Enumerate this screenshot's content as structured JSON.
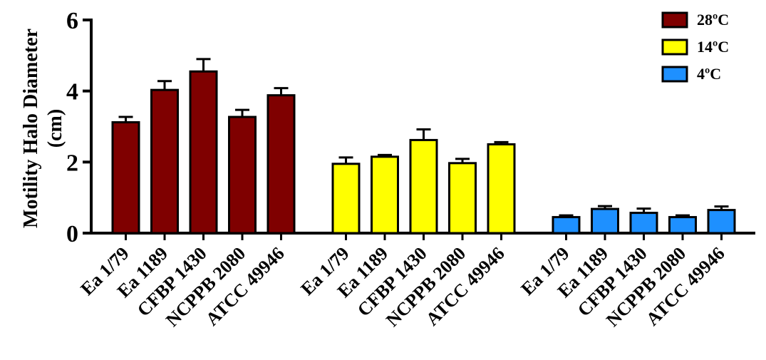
{
  "chart_data": {
    "type": "bar",
    "ylabel_lines": [
      "Motility Halo Diameter",
      "(cm)"
    ],
    "ylim": [
      0,
      6
    ],
    "yticks": [
      "0",
      "2",
      "4",
      "6"
    ],
    "categories": [
      "Ea 1/79",
      "Ea 1189",
      "CFBP 1430",
      "NCPPB 2080",
      "ATCC 49946"
    ],
    "legend_position": "top-right",
    "grid": false,
    "series": [
      {
        "name": "28ºC",
        "color": "#7f0000",
        "values": [
          3.12,
          4.03,
          4.55,
          3.27,
          3.88
        ],
        "errors": [
          0.15,
          0.25,
          0.35,
          0.2,
          0.2
        ]
      },
      {
        "name": "14ºC",
        "color": "#ffff00",
        "values": [
          1.95,
          2.15,
          2.62,
          1.97,
          2.5
        ],
        "errors": [
          0.18,
          0.05,
          0.3,
          0.12,
          0.06
        ]
      },
      {
        "name": "4ºC",
        "color": "#1e90ff",
        "values": [
          0.45,
          0.68,
          0.57,
          0.45,
          0.65
        ],
        "errors": [
          0.05,
          0.08,
          0.12,
          0.05,
          0.1
        ]
      }
    ]
  }
}
